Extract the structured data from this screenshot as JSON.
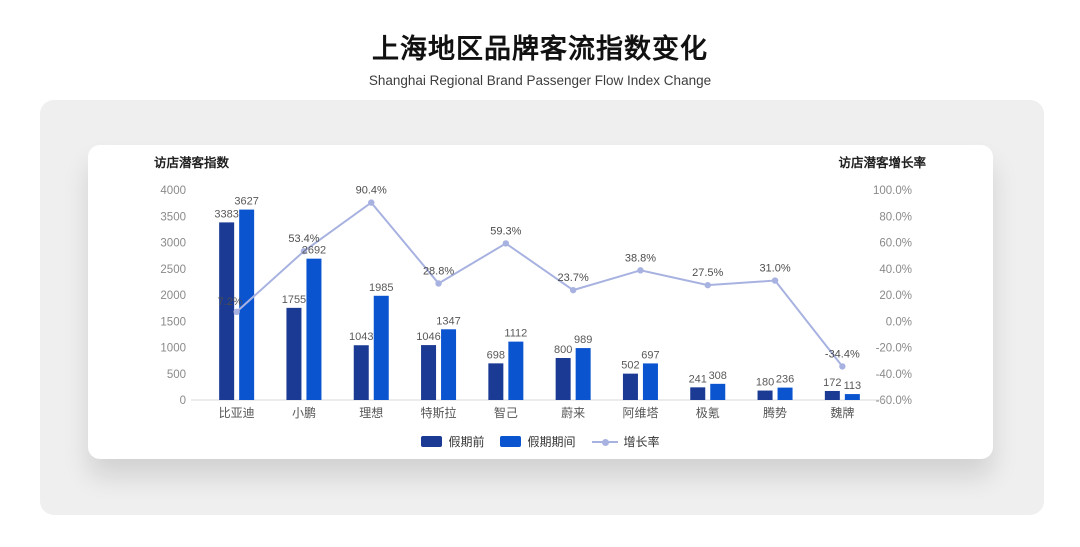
{
  "page": {
    "title": "上海地区品牌客流指数变化",
    "subtitle": "Shanghai Regional Brand Passenger Flow Index Change"
  },
  "chart_data": {
    "type": "bar",
    "categories": [
      "比亚迪",
      "小鹏",
      "理想",
      "特斯拉",
      "智己",
      "蔚来",
      "阿维塔",
      "极氪",
      "腾势",
      "魏牌"
    ],
    "series": [
      {
        "name": "假期前",
        "type": "bar",
        "axis": "left",
        "color": "#1a3a94",
        "values": [
          3383,
          1755,
          1043,
          1046,
          698,
          800,
          502,
          241,
          180,
          172
        ]
      },
      {
        "name": "假期期间",
        "type": "bar",
        "axis": "left",
        "color": "#0b54d0",
        "values": [
          3627,
          2692,
          1985,
          1347,
          1112,
          989,
          697,
          308,
          236,
          113
        ]
      },
      {
        "name": "增长率",
        "type": "line",
        "axis": "right",
        "color": "#a8b2e0",
        "values": [
          7.2,
          53.4,
          90.4,
          28.8,
          59.3,
          23.7,
          38.8,
          27.5,
          31.0,
          -34.4
        ]
      }
    ],
    "left_axis": {
      "title": "访店潜客指数",
      "min": 0,
      "max": 4000,
      "step": 500,
      "tick_format": "number"
    },
    "right_axis": {
      "title": "访店潜客增长率",
      "min": -60,
      "max": 100,
      "step": 20,
      "tick_format": "percent_1dp"
    },
    "grid": false,
    "legend_position": "bottom",
    "data_labels": true
  }
}
